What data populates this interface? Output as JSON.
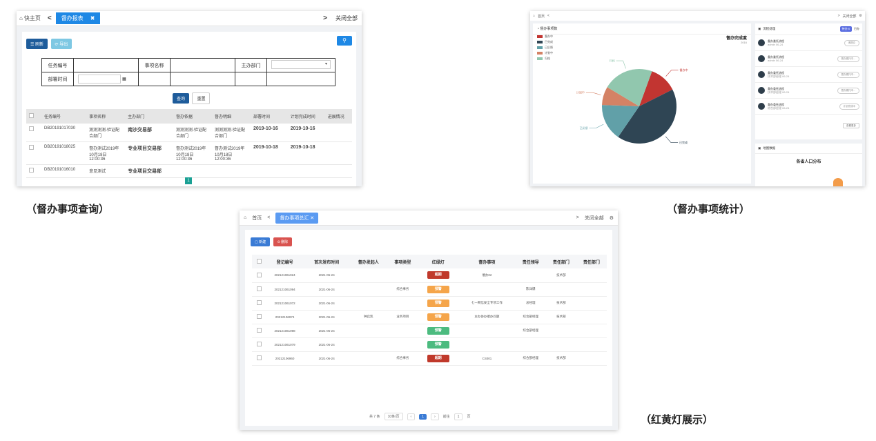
{
  "panel1": {
    "tabbar": {
      "home": "快主页",
      "prev": "<",
      "active_tab": "督办报表",
      "close": "✖",
      "next": ">",
      "close_all": "关闭全部"
    },
    "toolbar": {
      "refresh": "☰ 刷新",
      "export": "⟳ 导出",
      "search_icon": "search-icon"
    },
    "form": {
      "task_no": "任务编号",
      "item_name": "事项名称",
      "dept": "主办部门",
      "deploy_time": "部署时间"
    },
    "buttons": {
      "query": "查询",
      "reset": "重置"
    },
    "columns": [
      "任务编号",
      "事项名称",
      "主办部门",
      "督办依据",
      "督办明细",
      "部署时间",
      "计划完成时间",
      "进展情况"
    ],
    "rows": [
      {
        "no": "DB20191017030",
        "name": "测测测测-验证配合部门",
        "dept": "南沙交易部",
        "basis": "测测测测-验证配合部门",
        "detail": "测测测测-验证配合部门",
        "time": "2019-10-16",
        "plan": "2019-10-16",
        "progress": ""
      },
      {
        "no": "DB20191018025",
        "name": "督办测试2019年10月18日12:00:36",
        "dept": "专业项目交易部",
        "basis": "督办测试2019年10月18日12:00:36",
        "detail": "督办测试2019年10月18日12:00:36",
        "time": "2019-10-18",
        "plan": "2019-10-18",
        "progress": ""
      },
      {
        "no": "DB20191016010",
        "name": "意见测试",
        "dept": "专业项目交易部",
        "basis": "",
        "detail": "",
        "time": "",
        "plan": "",
        "progress": ""
      }
    ],
    "page": "1"
  },
  "caption1": "（督办事项查询）",
  "panel2": {
    "tab": {
      "home": "首页",
      "prev": "<",
      "next": ">",
      "close_all": "关闭全部"
    },
    "chart_header": "◔ 督办事项数",
    "chart_title": "督办完成度",
    "chart_subtitle": "2016",
    "flow_title": "流程处理",
    "flow_badge": "待办 6",
    "flow_tab2": "已办",
    "flows": [
      {
        "title": "督办委托流程",
        "sub": "admin 06-24",
        "action": "请提交"
      },
      {
        "title": "督办委托流程",
        "sub": "admin 06-24",
        "action": "督办委托中..."
      },
      {
        "title": "督办委托流程",
        "sub": "技术部经理 06-24",
        "action": "督办委托中..."
      },
      {
        "title": "督办委托流程",
        "sub": "技术部经理 06-24",
        "action": "督办委托中..."
      },
      {
        "title": "督办委托流程",
        "sub": "综合部经理 06-24",
        "action": "计划完成中"
      }
    ],
    "more": "查看更多",
    "map_header": "地图数据",
    "map_title": "各省人口分布",
    "chart_data": {
      "type": "pie",
      "title": "督办完成度",
      "categories": [
        "督办中",
        "已完成",
        "已反馈",
        "计划中",
        "归档"
      ],
      "values": [
        12,
        42,
        16,
        8,
        22
      ],
      "colors": [
        "#c23531",
        "#2f4554",
        "#61a0a8",
        "#d48265",
        "#91c7ae"
      ],
      "legend": "top-left"
    }
  },
  "caption2": "（督办事项统计）",
  "panel3": {
    "tab": {
      "home": "首页",
      "prev": "<",
      "active": "督办事项总汇 ✕",
      "next": ">",
      "close_all": "关闭全部"
    },
    "toolbar": {
      "new": "▢ 新建",
      "delete": "⊖ 删除"
    },
    "columns": [
      "登记编号",
      "首次发布时间",
      "督办发起人",
      "事项类型",
      "红绿灯",
      "督办事项",
      "责任领导",
      "责任部门",
      "责任部门"
    ],
    "rows": [
      {
        "no": "202121061024",
        "time": "2021-06-24",
        "init": "",
        "type": "",
        "light": "超期",
        "color": "#c0392b",
        "item": "催办02",
        "leader": "",
        "dept": "技术部"
      },
      {
        "no": "202121061094",
        "time": "2021-06-24",
        "init": "",
        "type": "综合事务",
        "light": "预警",
        "color": "#f5a54a",
        "item": "",
        "leader": "陈详爆",
        "dept": ""
      },
      {
        "no": "202121061072",
        "time": "2021-06-24",
        "init": "",
        "type": "",
        "light": "预警",
        "color": "#f5a54a",
        "item": "七一网信安全专项工作",
        "leader": "总经理",
        "dept": "技术部"
      },
      {
        "no": "20212106974",
        "time": "2021-06-24",
        "init": "钟启凯",
        "type": "业务项目",
        "light": "预警",
        "color": "#f5a54a",
        "item": "主办协办催办问题",
        "leader": "综合部经理",
        "dept": "技术部"
      },
      {
        "no": "202121061098",
        "time": "2021-06-24",
        "init": "",
        "type": "",
        "light": "预警",
        "color": "#4cbb7f",
        "item": "",
        "leader": "综合部经理",
        "dept": ""
      },
      {
        "no": "202121061079",
        "time": "2021-06-24",
        "init": "",
        "type": "",
        "light": "预警",
        "color": "#4cbb7f",
        "item": "",
        "leader": "",
        "dept": ""
      },
      {
        "no": "20212106960",
        "time": "2021-06-24",
        "init": "",
        "type": "综合事务",
        "light": "超期",
        "color": "#c0392b",
        "item": "CS001",
        "leader": "综合部经理",
        "dept": "技术部"
      }
    ],
    "pager": {
      "total": "共 7 条",
      "size": "10条/页",
      "current": "1",
      "goto": "前往",
      "goto_val": "1",
      "unit": "页"
    }
  },
  "caption3": "（红黄灯展示）"
}
